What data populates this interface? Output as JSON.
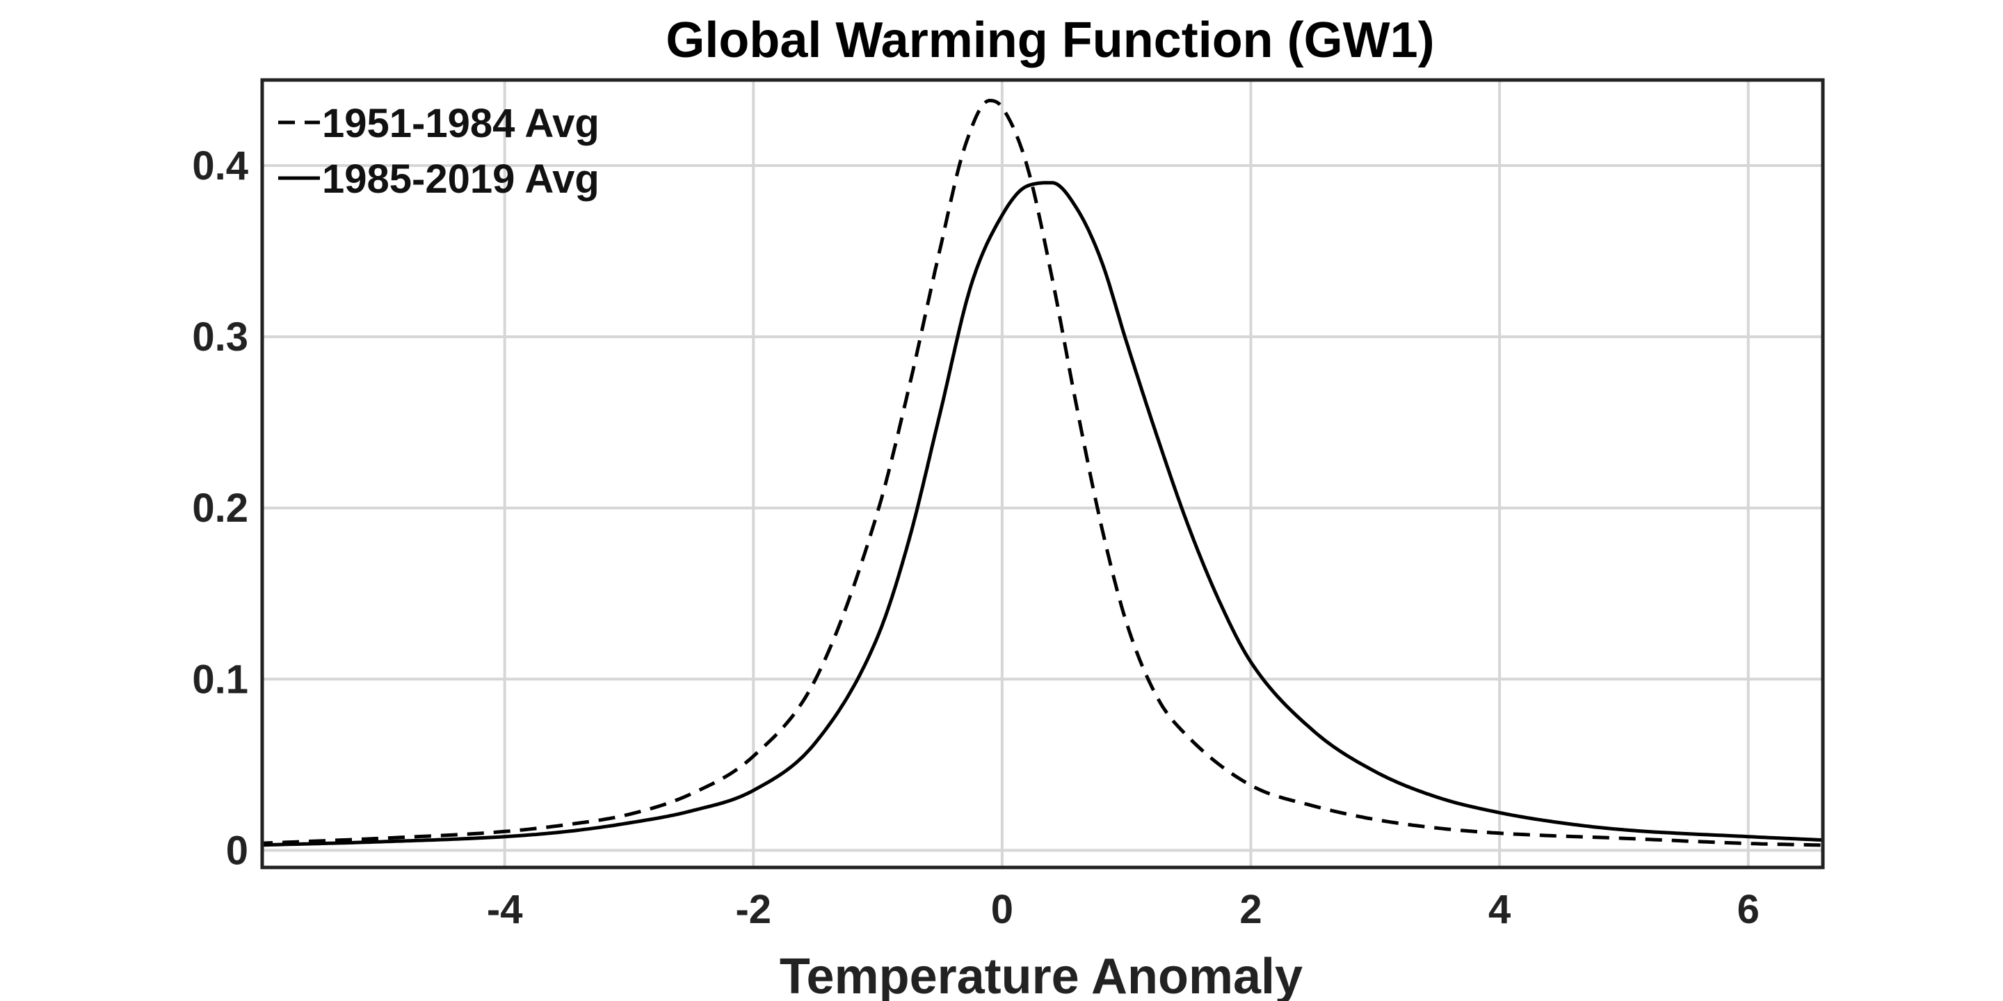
{
  "chart_data": {
    "type": "line",
    "title": "Global Warming Function (GW1)",
    "xlabel": "Temperature Anomaly",
    "ylabel": "",
    "xlim": [
      -5.95,
      6.6
    ],
    "ylim": [
      -0.01,
      0.45
    ],
    "xticks": [
      -4,
      -2,
      0,
      2,
      4,
      6
    ],
    "xtick_labels": [
      "-4",
      "-2",
      "0",
      "2",
      "4",
      "6"
    ],
    "yticks": [
      0,
      0.1,
      0.2,
      0.3,
      0.4
    ],
    "ytick_labels": [
      "0",
      "0.1",
      "0.2",
      "0.3",
      "0.4"
    ],
    "grid": true,
    "legend_position": "top-left",
    "series": [
      {
        "name": "1951-1984 Avg",
        "style": "dashed",
        "color": "#000000",
        "x": [
          -6.0,
          -5.0,
          -4.0,
          -3.5,
          -3.0,
          -2.5,
          -2.0,
          -1.5,
          -1.0,
          -0.75,
          -0.5,
          -0.3,
          -0.1,
          0.0,
          0.2,
          0.4,
          0.6,
          0.8,
          1.0,
          1.25,
          1.5,
          2.0,
          2.5,
          3.0,
          3.5,
          4.0,
          5.0,
          6.0,
          6.6
        ],
        "values": [
          0.004,
          0.007,
          0.011,
          0.015,
          0.021,
          0.033,
          0.055,
          0.1,
          0.198,
          0.27,
          0.351,
          0.411,
          0.438,
          0.434,
          0.4,
          0.335,
          0.259,
          0.189,
          0.133,
          0.089,
          0.066,
          0.038,
          0.026,
          0.018,
          0.013,
          0.01,
          0.007,
          0.004,
          0.003
        ]
      },
      {
        "name": "1985-2019 Avg",
        "style": "solid",
        "color": "#000000",
        "x": [
          -6.0,
          -5.0,
          -4.0,
          -3.5,
          -3.0,
          -2.5,
          -2.0,
          -1.5,
          -1.0,
          -0.75,
          -0.5,
          -0.25,
          0.0,
          0.2,
          0.4,
          0.6,
          0.8,
          1.0,
          1.25,
          1.5,
          1.75,
          2.0,
          2.5,
          3.0,
          3.5,
          4.0,
          4.5,
          5.0,
          6.0,
          6.6
        ],
        "values": [
          0.003,
          0.005,
          0.008,
          0.011,
          0.016,
          0.023,
          0.035,
          0.063,
          0.125,
          0.181,
          0.255,
          0.33,
          0.371,
          0.388,
          0.39,
          0.375,
          0.344,
          0.297,
          0.241,
          0.189,
          0.145,
          0.11,
          0.07,
          0.046,
          0.031,
          0.022,
          0.016,
          0.012,
          0.008,
          0.006
        ]
      }
    ]
  }
}
